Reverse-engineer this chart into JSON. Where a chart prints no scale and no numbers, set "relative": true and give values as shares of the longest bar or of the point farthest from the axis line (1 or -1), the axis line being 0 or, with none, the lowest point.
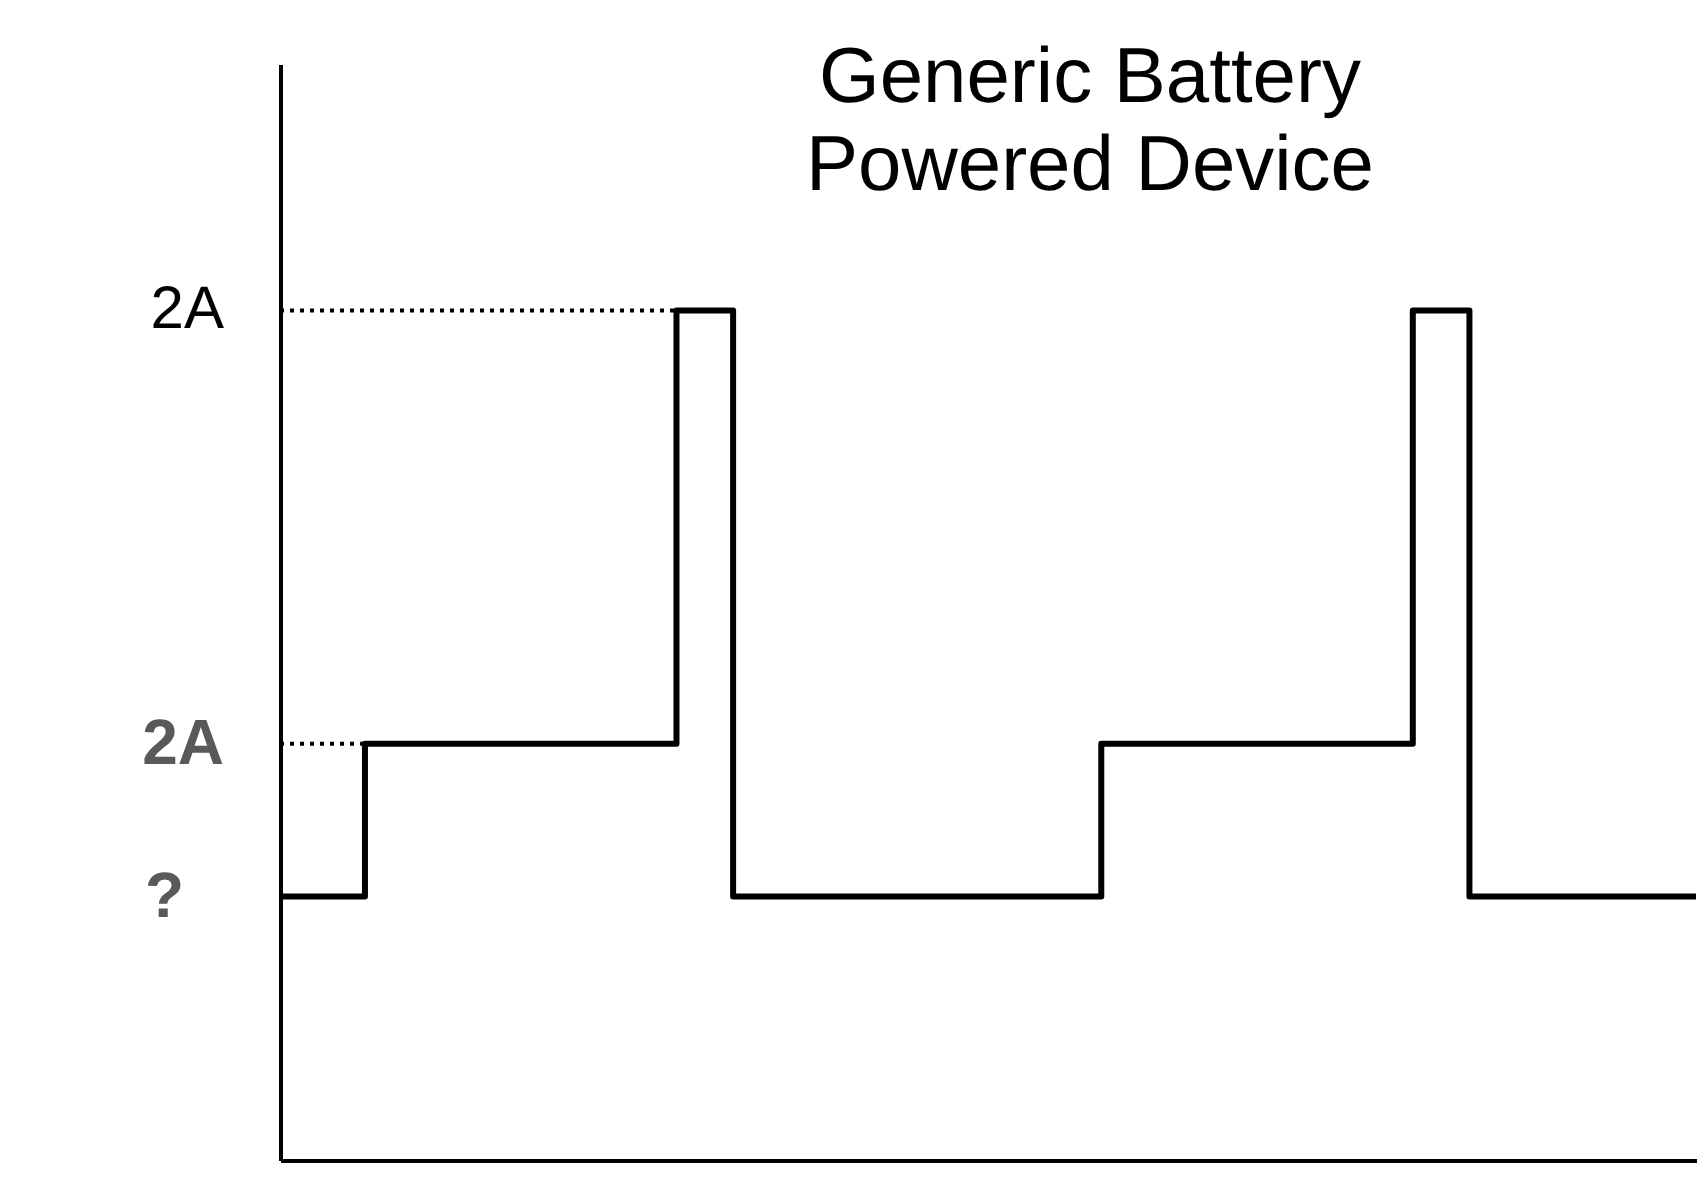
{
  "chart_data": {
    "type": "step",
    "title": "Generic Battery\nPowered Device",
    "relative": true,
    "grid": false,
    "marker": "none",
    "line_style": "solid",
    "categories": [
      null,
      null,
      null,
      null,
      null,
      null,
      null,
      null,
      null,
      null,
      null,
      null,
      null,
      null,
      null,
      null,
      null,
      null,
      null,
      null,
      null,
      null,
      null,
      null,
      null,
      null,
      null,
      null,
      null,
      null,
      null,
      null,
      null,
      null,
      null,
      null,
      null,
      null,
      null,
      null,
      null,
      null,
      null,
      null,
      null,
      null,
      null,
      null,
      null,
      null,
      null
    ],
    "series": [
      {
        "color": "#000000",
        "values": [
          0.31,
          0.31,
          0.31,
          0.49,
          0.49,
          0.49,
          0.49,
          0.49,
          0.49,
          0.49,
          0.49,
          0.49,
          0.49,
          0.49,
          1,
          1,
          0.31,
          0.31,
          0.31,
          0.31,
          0.31,
          0.31,
          0.31,
          0.31,
          0.31,
          0.31,
          0.31,
          0.31,
          0.31,
          0.49,
          0.49,
          0.49,
          0.49,
          0.49,
          0.49,
          0.49,
          0.49,
          0.49,
          0.49,
          0.49,
          1,
          1,
          0.31,
          0.31,
          0.31,
          0.31,
          0.31,
          0.31,
          0.31,
          0.31,
          0.31
        ]
      }
    ],
    "ref_lines": [
      {
        "axis": "y",
        "value": 1,
        "label": "2A",
        "line_style": "dotted",
        "color": "#000000"
      },
      {
        "axis": "y",
        "value": 0.49,
        "label": "2A",
        "line_style": "dotted",
        "color": "#000000"
      }
    ],
    "annotations": [
      "?"
    ]
  }
}
